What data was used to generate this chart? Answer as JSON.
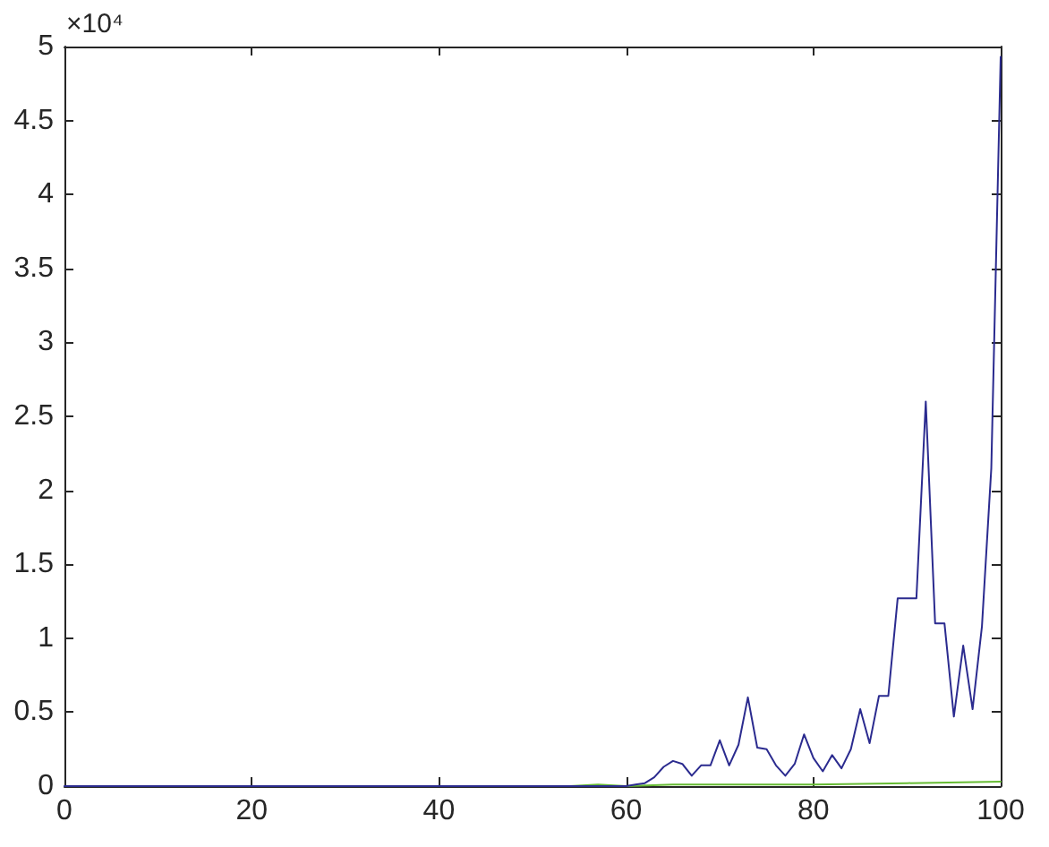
{
  "chart_data": {
    "type": "line",
    "series": [
      {
        "color": "#66bb33",
        "x": [
          54,
          57,
          60,
          65,
          70,
          80,
          90,
          100
        ],
        "values": [
          0,
          0.01,
          0,
          0.01,
          0.01,
          0.01,
          0.02,
          0.03
        ]
      },
      {
        "color": "#2b2b8f",
        "x": [
          0,
          50,
          55,
          60,
          61,
          62,
          63,
          64,
          65,
          66,
          67,
          68,
          69,
          70,
          71,
          72,
          73,
          74,
          75,
          76,
          77,
          78,
          79,
          80,
          81,
          82,
          83,
          84,
          85,
          86,
          87,
          88,
          89,
          90,
          91,
          92,
          93,
          94,
          95,
          96,
          97,
          98,
          99,
          100
        ],
        "values": [
          0,
          0,
          0,
          0,
          0.01,
          0.02,
          0.06,
          0.13,
          0.17,
          0.15,
          0.07,
          0.14,
          0.14,
          0.31,
          0.14,
          0.28,
          0.6,
          0.26,
          0.25,
          0.14,
          0.07,
          0.15,
          0.35,
          0.19,
          0.1,
          0.21,
          0.12,
          0.25,
          0.52,
          0.29,
          0.61,
          0.61,
          1.27,
          1.27,
          1.27,
          2.6,
          1.1,
          1.1,
          0.47,
          0.95,
          0.52,
          1.08,
          2.15,
          4.93
        ]
      }
    ],
    "xlim": [
      0,
      100
    ],
    "xticks": [
      0,
      20,
      40,
      60,
      80,
      100
    ],
    "ylim": [
      0,
      5
    ],
    "yticks": [
      0,
      0.5,
      1,
      1.5,
      2,
      2.5,
      3,
      3.5,
      4,
      4.5,
      5
    ],
    "annotations": [
      "×10⁴"
    ],
    "marker": "none",
    "line_style": "solid"
  }
}
